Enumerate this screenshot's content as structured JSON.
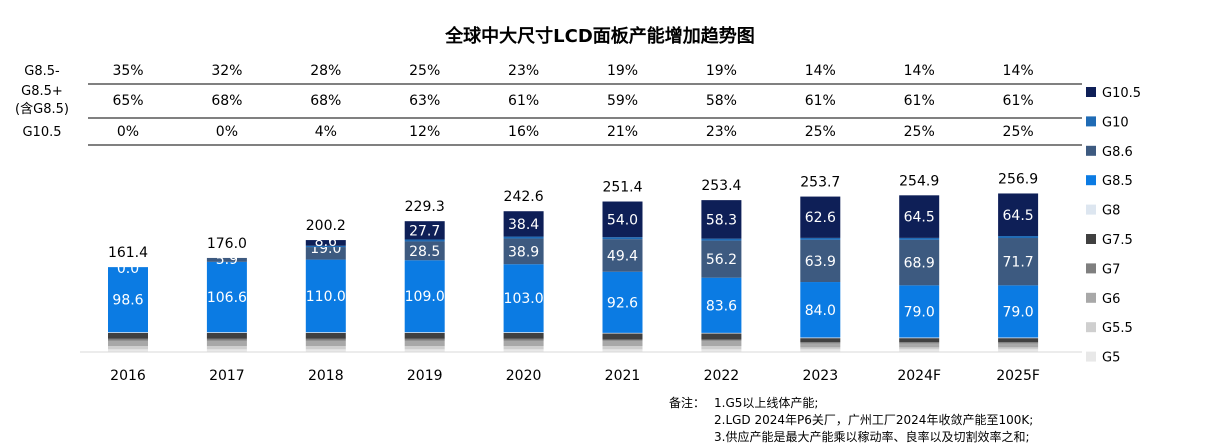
{
  "chart_data": {
    "type": "bar",
    "title": "全球中大尺寸LCD面板产能增加趋势图",
    "categories": [
      "2016",
      "2017",
      "2018",
      "2019",
      "2020",
      "2021",
      "2022",
      "2023",
      "2024F",
      "2025F"
    ],
    "totals": [
      "161.4",
      "176.0",
      "200.2",
      "229.3",
      "242.6",
      "251.4",
      "253.4",
      "253.7",
      "254.9",
      "256.9"
    ],
    "share_table": {
      "row_labels": [
        "G8.5-",
        "G8.5+\n(含G8.5)",
        "G10.5"
      ],
      "rows": [
        [
          "35%",
          "32%",
          "28%",
          "25%",
          "23%",
          "19%",
          "19%",
          "14%",
          "14%",
          "14%"
        ],
        [
          "65%",
          "68%",
          "68%",
          "63%",
          "61%",
          "59%",
          "58%",
          "61%",
          "61%",
          "61%"
        ],
        [
          "0%",
          "0%",
          "4%",
          "12%",
          "16%",
          "21%",
          "23%",
          "25%",
          "25%",
          "25%"
        ]
      ]
    },
    "series": [
      {
        "name": "G5",
        "color": "#e8e8e8",
        "values": [
          4,
          4,
          4,
          4,
          4,
          4,
          4,
          4,
          4,
          4
        ],
        "labels": null
      },
      {
        "name": "G5.5",
        "color": "#cfcfcf",
        "values": [
          5,
          5,
          5,
          5,
          5,
          5,
          5,
          3,
          3,
          3
        ],
        "labels": null
      },
      {
        "name": "G6",
        "color": "#a8a8a8",
        "values": [
          8,
          8,
          8,
          8,
          8,
          8,
          8,
          6,
          6,
          6
        ],
        "labels": null
      },
      {
        "name": "G7",
        "color": "#7f7f7f",
        "values": [
          3,
          3,
          3,
          3,
          3,
          2,
          2,
          2,
          2,
          2
        ],
        "labels": null
      },
      {
        "name": "G7.5",
        "color": "#404040",
        "values": [
          9,
          9,
          9,
          9,
          9,
          9,
          9,
          6,
          6,
          6
        ],
        "labels": null
      },
      {
        "name": "G8",
        "color": "#dde6f0",
        "values": [
          1,
          1,
          1,
          1,
          1,
          1,
          1,
          1,
          1,
          1
        ],
        "labels": null
      },
      {
        "name": "G8.5",
        "color": "#0b7be3",
        "values": [
          98.6,
          106.6,
          110.0,
          109.0,
          103.0,
          92.6,
          83.6,
          84.0,
          79.0,
          79.0
        ],
        "labels": [
          "98.6",
          "106.6",
          "110.0",
          "109.0",
          "103.0",
          "92.6",
          "83.6",
          "84.0",
          "79.0",
          "79.0"
        ]
      },
      {
        "name": "G8.6",
        "color": "#3d5a80",
        "values": [
          0.0,
          5.9,
          19.0,
          28.5,
          38.9,
          49.4,
          56.2,
          63.9,
          68.9,
          71.7
        ],
        "labels": [
          "0.0",
          "5.9",
          "19.0",
          "28.5",
          "38.9",
          "49.4",
          "56.2",
          "63.9",
          "68.9",
          "71.7"
        ]
      },
      {
        "name": "G10",
        "color": "#1f6bb5",
        "values": [
          0,
          0,
          2,
          3,
          3,
          3,
          3,
          3,
          3,
          3
        ],
        "labels": null
      },
      {
        "name": "G10.5",
        "color": "#0e1f57",
        "values": [
          0,
          0,
          8.6,
          27.7,
          38.4,
          54.0,
          58.3,
          62.6,
          64.5,
          64.5
        ],
        "labels": [
          null,
          null,
          "8.6",
          "27.7",
          "38.4",
          "54.0",
          "58.3",
          "62.6",
          "64.5",
          "64.5"
        ]
      }
    ],
    "legend_order": [
      "G10.5",
      "G10",
      "G8.6",
      "G8.5",
      "G8",
      "G7.5",
      "G7",
      "G6",
      "G5.5",
      "G5"
    ],
    "legend_position": "right",
    "grid": false
  },
  "notes": {
    "head": "备注：",
    "lines": [
      "1.G5以上线体产能;",
      "2.LGD 2024年P6关厂，广州工厂2024年收敛产能至100K;",
      "3.供应产能是最大产能乘以稼动率、良率以及切割效率之和;"
    ]
  }
}
